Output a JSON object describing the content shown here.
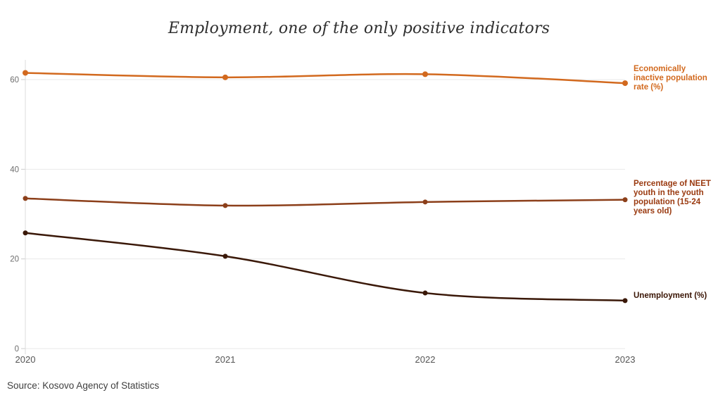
{
  "title": "Employment, one of the only positive indicators",
  "source": "Source: Kosovo Agency of Statistics",
  "chart_data": {
    "type": "line",
    "x": [
      2020,
      2021,
      2022,
      2023
    ],
    "series": [
      {
        "name": "Economically inactive population rate (%)",
        "values": [
          61.5,
          60.5,
          61.2,
          59.2
        ],
        "color": "#d2691e",
        "label_color": "#d2691e"
      },
      {
        "name": "Percentage of NEET youth in the youth population (15-24 years old)",
        "values": [
          33.5,
          31.9,
          32.7,
          33.2
        ],
        "color": "#8c3f1a",
        "label_color": "#9a3a10"
      },
      {
        "name": "Unemployment (%)",
        "values": [
          25.8,
          20.6,
          12.4,
          10.7
        ],
        "color": "#3a1808",
        "label_color": "#3a1505"
      }
    ],
    "yticks": [
      0,
      20,
      40,
      60
    ],
    "ylim": [
      0,
      64.4
    ],
    "grid": true,
    "legend_position": "right-edge-labels",
    "markers": true
  }
}
